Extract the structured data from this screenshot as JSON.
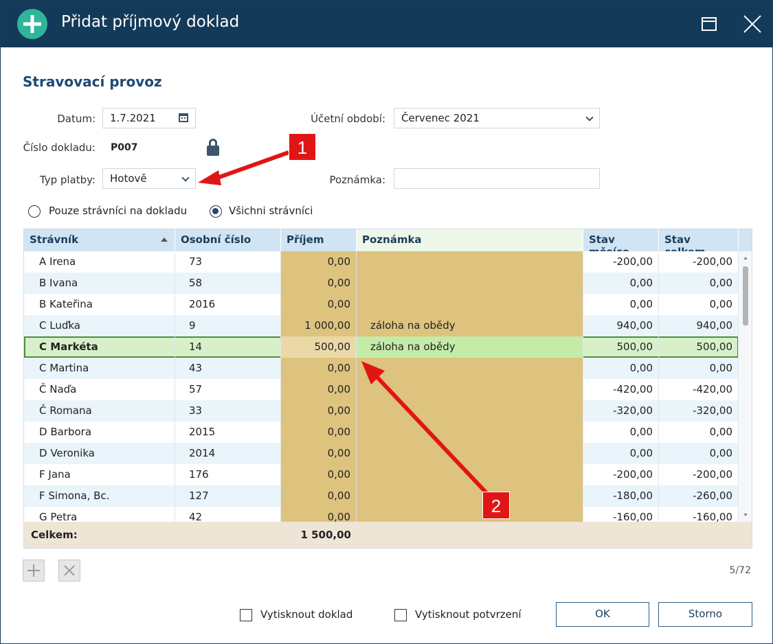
{
  "window": {
    "title": "Přidat příjmový doklad"
  },
  "form": {
    "section_title": "Stravovací provoz",
    "datum_label": "Datum:",
    "datum_value": "1.7.2021",
    "cislo_label": "Číslo dokladu:",
    "cislo_value": "P007",
    "typ_label": "Typ platby:",
    "typ_value": "Hotově",
    "obdobi_label": "Účetní období:",
    "obdobi_value": "Červenec 2021",
    "poznamka_label": "Poznámka:",
    "poznamka_value": ""
  },
  "filter": {
    "option1": "Pouze strávníci na dokladu",
    "option2": "Všichni strávníci",
    "selected": "option2"
  },
  "grid": {
    "headers": {
      "stravnik": "Strávník",
      "osobni": "Osobní číslo",
      "prijem": "Příjem",
      "poznamka": "Poznámka",
      "stav_mesice": "Stav měsíce",
      "stav_celkem": "Stav celkem"
    },
    "rows": [
      {
        "name": "A Irena",
        "num": "73",
        "prijem": "0,00",
        "note": "",
        "mesic": "-200,00",
        "celkem": "-200,00"
      },
      {
        "name": "B Ivana",
        "num": "58",
        "prijem": "0,00",
        "note": "",
        "mesic": "0,00",
        "celkem": "0,00"
      },
      {
        "name": "B Kateřina",
        "num": "2016",
        "prijem": "0,00",
        "note": "",
        "mesic": "0,00",
        "celkem": "0,00"
      },
      {
        "name": "C Luďka",
        "num": "9",
        "prijem": "1 000,00",
        "note": "záloha na obědy",
        "mesic": "940,00",
        "celkem": "940,00"
      },
      {
        "name": "C Markéta",
        "num": "14",
        "prijem": "500,00",
        "note": "záloha na obědy",
        "mesic": "500,00",
        "celkem": "500,00"
      },
      {
        "name": "C Martina",
        "num": "43",
        "prijem": "0,00",
        "note": "",
        "mesic": "0,00",
        "celkem": "0,00"
      },
      {
        "name": "Č Naďa",
        "num": "57",
        "prijem": "0,00",
        "note": "",
        "mesic": "-420,00",
        "celkem": "-420,00"
      },
      {
        "name": "Č Romana",
        "num": "33",
        "prijem": "0,00",
        "note": "",
        "mesic": "-320,00",
        "celkem": "-320,00"
      },
      {
        "name": "D Barbora",
        "num": "2015",
        "prijem": "0,00",
        "note": "",
        "mesic": "0,00",
        "celkem": "0,00"
      },
      {
        "name": "D Veronika",
        "num": "2014",
        "prijem": "0,00",
        "note": "",
        "mesic": "0,00",
        "celkem": "0,00"
      },
      {
        "name": "F Jana",
        "num": "176",
        "prijem": "0,00",
        "note": "",
        "mesic": "-200,00",
        "celkem": "-200,00"
      },
      {
        "name": "F Simona, Bc.",
        "num": "127",
        "prijem": "0,00",
        "note": "",
        "mesic": "-180,00",
        "celkem": "-260,00"
      },
      {
        "name": "G Petra",
        "num": "42",
        "prijem": "0,00",
        "note": "",
        "mesic": "-160,00",
        "celkem": "-160,00"
      }
    ],
    "selected_index": 4,
    "total_label": "Celkem:",
    "total_value": "1 500,00"
  },
  "toolbar": {
    "counter": "5/72"
  },
  "footer": {
    "print_doc": "Vytisknout doklad",
    "print_confirm": "Vytisknout potvrzení",
    "ok": "OK",
    "cancel": "Storno"
  },
  "callouts": {
    "one": "1",
    "two": "2"
  },
  "colors": {
    "titlebar": "#143a5a",
    "accent": "#2fb59a",
    "annotation": "#e01616"
  }
}
